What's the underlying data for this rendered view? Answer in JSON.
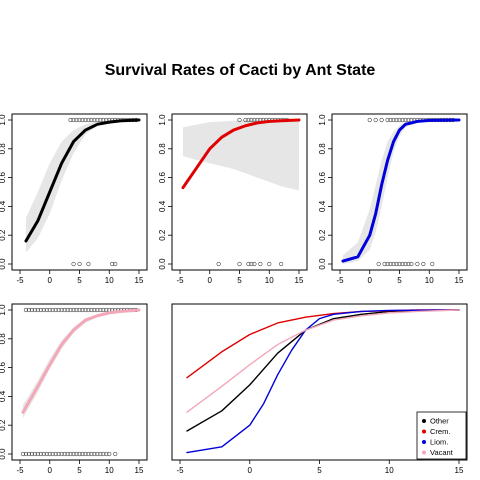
{
  "title": "Survival Rates of Cacti by Ant State",
  "colors": {
    "Other": "#000000",
    "Crem.": "#e00000",
    "Liom.": "#0000dd",
    "Vacant": "#f4a7b9",
    "band": "#e6e6e6",
    "points": "#444444"
  },
  "chart_data": [
    {
      "type": "line",
      "series_name": "Other",
      "x": [
        -4,
        -2,
        0,
        2,
        4,
        6,
        8,
        10,
        12,
        15
      ],
      "y": [
        0.16,
        0.3,
        0.5,
        0.7,
        0.85,
        0.93,
        0.97,
        0.985,
        0.995,
        1.0
      ],
      "band_lower": [
        0.08,
        0.18,
        0.35,
        0.58,
        0.77,
        0.9,
        0.96,
        0.98,
        0.99,
        1.0
      ],
      "band_upper": [
        0.32,
        0.5,
        0.7,
        0.85,
        0.93,
        0.97,
        0.99,
        0.995,
        1.0,
        1.0
      ],
      "points_top_x": [
        3.5,
        4,
        4.5,
        5,
        5.5,
        6,
        6.5,
        7,
        7.5,
        8,
        8.5,
        9,
        9.5,
        10,
        10.5,
        11,
        11.5,
        12,
        12.5,
        13,
        13.5,
        14,
        14.5
      ],
      "points_bottom_x": [
        4,
        5,
        6.5,
        10.5,
        11
      ],
      "xticks": [
        -5,
        0,
        5,
        10,
        15
      ],
      "yticks": [
        0.0,
        0.2,
        0.4,
        0.6,
        0.8,
        1.0
      ],
      "xlim": [
        -5,
        15
      ],
      "ylim": [
        0,
        1
      ]
    },
    {
      "type": "line",
      "series_name": "Crem.",
      "x": [
        -4.5,
        -2,
        0,
        2,
        4,
        6,
        8,
        10,
        12,
        15
      ],
      "y": [
        0.53,
        0.68,
        0.8,
        0.88,
        0.93,
        0.96,
        0.98,
        0.99,
        0.995,
        1.0
      ],
      "band_lower": [
        0.75,
        0.72,
        0.7,
        0.68,
        0.66,
        0.63,
        0.6,
        0.57,
        0.54,
        0.51
      ],
      "band_upper": [
        0.95,
        0.97,
        0.985,
        0.99,
        0.995,
        1.0,
        1.0,
        1.0,
        1.0,
        1.0
      ],
      "points_top_x": [
        5,
        6,
        6.5,
        7,
        7.5,
        8,
        8.5,
        9,
        9.5,
        10,
        10.5,
        11,
        11.5,
        12,
        12.5,
        13
      ],
      "points_bottom_x": [
        1.5,
        5,
        6.5,
        7,
        7.5,
        8.5,
        10,
        12
      ],
      "xticks": [
        -5,
        0,
        5,
        10,
        15
      ],
      "yticks": [
        0.0,
        0.2,
        0.4,
        0.6,
        0.8,
        1.0
      ],
      "xlim": [
        -5,
        15
      ],
      "ylim": [
        0,
        1
      ]
    },
    {
      "type": "line",
      "series_name": "Liom.",
      "x": [
        -4.5,
        -2,
        0,
        1,
        2,
        3,
        4,
        5,
        6,
        8,
        10,
        15
      ],
      "y": [
        0.02,
        0.05,
        0.2,
        0.35,
        0.55,
        0.72,
        0.85,
        0.93,
        0.97,
        0.99,
        0.997,
        1.0
      ],
      "band_lower": [
        0.0,
        0.02,
        0.1,
        0.22,
        0.4,
        0.6,
        0.78,
        0.89,
        0.95,
        0.98,
        0.995,
        1.0
      ],
      "band_upper": [
        0.06,
        0.15,
        0.38,
        0.55,
        0.72,
        0.85,
        0.92,
        0.96,
        0.985,
        0.995,
        1.0,
        1.0
      ],
      "points_top_x": [
        0,
        1,
        2,
        3,
        3.5,
        4,
        4.5,
        5,
        5.5,
        6,
        6.5,
        7,
        7.5,
        8,
        8.5,
        9,
        9.5,
        10,
        10.5,
        11,
        11.5,
        12,
        12.5,
        13,
        13.5,
        14
      ],
      "points_bottom_x": [
        1.5,
        2.5,
        3,
        3.5,
        4,
        4.5,
        5,
        5.5,
        6,
        6.5,
        7,
        8,
        9,
        10.5
      ],
      "xticks": [
        -5,
        0,
        5,
        10,
        15
      ],
      "yticks": [
        0.0,
        0.2,
        0.4,
        0.6,
        0.8,
        1.0
      ],
      "xlim": [
        -5,
        15
      ],
      "ylim": [
        0,
        1
      ]
    },
    {
      "type": "line",
      "series_name": "Vacant",
      "x": [
        -4.5,
        -2,
        0,
        2,
        4,
        6,
        8,
        10,
        12,
        15
      ],
      "y": [
        0.29,
        0.47,
        0.62,
        0.76,
        0.86,
        0.93,
        0.96,
        0.98,
        0.99,
        1.0
      ],
      "band_lower": [
        0.25,
        0.43,
        0.59,
        0.73,
        0.84,
        0.91,
        0.95,
        0.975,
        0.985,
        0.995
      ],
      "band_upper": [
        0.34,
        0.51,
        0.66,
        0.79,
        0.88,
        0.94,
        0.97,
        0.985,
        0.995,
        1.0
      ],
      "points_top_x": [
        -4,
        -3.5,
        -3,
        -2.5,
        -2,
        -1.5,
        -1,
        -0.5,
        0,
        0.5,
        1,
        1.5,
        2,
        2.5,
        3,
        3.5,
        4,
        4.5,
        5,
        5.5,
        6,
        6.5,
        7,
        7.5,
        8,
        8.5,
        9,
        9.5,
        10,
        10.5,
        11,
        11.5,
        12,
        12.5,
        13,
        13.5,
        14,
        14.5
      ],
      "points_bottom_x": [
        -4.5,
        -4,
        -3.5,
        -3,
        -2.5,
        -2,
        -1.5,
        -1,
        -0.5,
        0,
        0.5,
        1,
        1.5,
        2,
        2.5,
        3,
        3.5,
        4,
        4.5,
        5,
        5.5,
        6,
        6.5,
        7,
        7.5,
        8,
        8.5,
        9,
        9.5,
        10,
        11
      ],
      "xticks": [
        -5,
        0,
        5,
        10,
        15
      ],
      "yticks": [
        0.0,
        0.2,
        0.4,
        0.6,
        0.8,
        1.0
      ],
      "xlim": [
        -5,
        15
      ],
      "ylim": [
        0,
        1
      ]
    },
    {
      "type": "line",
      "series": [
        {
          "name": "Other",
          "x": [
            -4.5,
            -2,
            0,
            2,
            4,
            6,
            8,
            10,
            12,
            15
          ],
          "y": [
            0.16,
            0.3,
            0.48,
            0.7,
            0.86,
            0.94,
            0.97,
            0.99,
            0.995,
            1.0
          ]
        },
        {
          "name": "Crem.",
          "x": [
            -4.5,
            -2,
            0,
            2,
            4,
            6,
            8,
            10,
            12,
            15
          ],
          "y": [
            0.53,
            0.71,
            0.83,
            0.91,
            0.95,
            0.975,
            0.99,
            0.995,
            1.0,
            1.0
          ]
        },
        {
          "name": "Liom.",
          "x": [
            -4.5,
            -2,
            0,
            1,
            2,
            3,
            4,
            5,
            6,
            8,
            10,
            15
          ],
          "y": [
            0.01,
            0.05,
            0.2,
            0.35,
            0.55,
            0.72,
            0.86,
            0.94,
            0.97,
            0.99,
            0.997,
            1.0
          ]
        },
        {
          "name": "Vacant",
          "x": [
            -4.5,
            -2,
            0,
            2,
            4,
            6,
            8,
            10,
            12,
            15
          ],
          "y": [
            0.29,
            0.47,
            0.62,
            0.76,
            0.86,
            0.93,
            0.96,
            0.98,
            0.99,
            1.0
          ]
        }
      ],
      "legend": [
        "Other",
        "Crem.",
        "Liom.",
        "Vacant"
      ],
      "legend_position": "bottom-right",
      "xticks": [
        -5,
        0,
        5,
        10,
        15
      ],
      "xlim": [
        -5,
        15
      ],
      "ylim": [
        0,
        1
      ]
    }
  ]
}
